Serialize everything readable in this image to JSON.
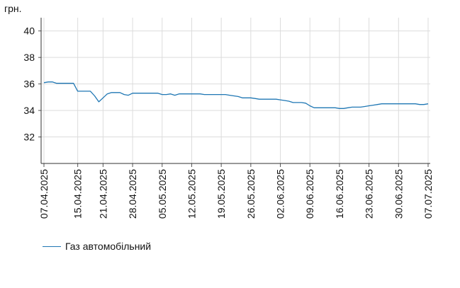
{
  "chart_data": {
    "type": "line",
    "ylabel": "грн.",
    "ylim": [
      30,
      41
    ],
    "yticks": [
      32,
      34,
      36,
      38,
      40
    ],
    "grid": true,
    "legend_position": "bottom-left",
    "xlim": [
      "2025-04-07",
      "2025-07-07"
    ],
    "xtick_labels": [
      "07.04.2025",
      "15.04.2025",
      "21.04.2025",
      "28.04.2025",
      "05.05.2025",
      "12.05.2025",
      "19.05.2025",
      "26.05.2025",
      "02.06.2025",
      "09.06.2025",
      "16.06.2025",
      "23.06.2025",
      "30.06.2025",
      "07.07.2025"
    ],
    "xtick_dates": [
      "2025-04-07",
      "2025-04-15",
      "2025-04-21",
      "2025-04-28",
      "2025-05-05",
      "2025-05-12",
      "2025-05-19",
      "2025-05-26",
      "2025-06-02",
      "2025-06-09",
      "2025-06-16",
      "2025-06-23",
      "2025-06-30",
      "2025-07-07"
    ],
    "series": [
      {
        "name": "Газ автомобільний",
        "color": "#1f77b4",
        "points": [
          [
            "2025-04-07",
            36.1
          ],
          [
            "2025-04-08",
            36.15
          ],
          [
            "2025-04-09",
            36.15
          ],
          [
            "2025-04-10",
            36.05
          ],
          [
            "2025-04-11",
            36.05
          ],
          [
            "2025-04-12",
            36.05
          ],
          [
            "2025-04-13",
            36.05
          ],
          [
            "2025-04-14",
            36.05
          ],
          [
            "2025-04-15",
            35.45
          ],
          [
            "2025-04-16",
            35.45
          ],
          [
            "2025-04-17",
            35.45
          ],
          [
            "2025-04-18",
            35.45
          ],
          [
            "2025-04-19",
            35.1
          ],
          [
            "2025-04-20",
            34.65
          ],
          [
            "2025-04-21",
            34.95
          ],
          [
            "2025-04-22",
            35.25
          ],
          [
            "2025-04-23",
            35.35
          ],
          [
            "2025-04-24",
            35.35
          ],
          [
            "2025-04-25",
            35.35
          ],
          [
            "2025-04-26",
            35.2
          ],
          [
            "2025-04-27",
            35.15
          ],
          [
            "2025-04-28",
            35.3
          ],
          [
            "2025-04-29",
            35.3
          ],
          [
            "2025-04-30",
            35.3
          ],
          [
            "2025-05-01",
            35.3
          ],
          [
            "2025-05-02",
            35.3
          ],
          [
            "2025-05-03",
            35.3
          ],
          [
            "2025-05-04",
            35.3
          ],
          [
            "2025-05-05",
            35.2
          ],
          [
            "2025-05-06",
            35.2
          ],
          [
            "2025-05-07",
            35.25
          ],
          [
            "2025-05-08",
            35.15
          ],
          [
            "2025-05-09",
            35.25
          ],
          [
            "2025-05-10",
            35.25
          ],
          [
            "2025-05-11",
            35.25
          ],
          [
            "2025-05-12",
            35.25
          ],
          [
            "2025-05-13",
            35.25
          ],
          [
            "2025-05-14",
            35.25
          ],
          [
            "2025-05-15",
            35.2
          ],
          [
            "2025-05-16",
            35.2
          ],
          [
            "2025-05-17",
            35.2
          ],
          [
            "2025-05-18",
            35.2
          ],
          [
            "2025-05-19",
            35.2
          ],
          [
            "2025-05-20",
            35.2
          ],
          [
            "2025-05-21",
            35.15
          ],
          [
            "2025-05-22",
            35.1
          ],
          [
            "2025-05-23",
            35.05
          ],
          [
            "2025-05-24",
            34.95
          ],
          [
            "2025-05-25",
            34.95
          ],
          [
            "2025-05-26",
            34.95
          ],
          [
            "2025-05-27",
            34.9
          ],
          [
            "2025-05-28",
            34.85
          ],
          [
            "2025-05-29",
            34.85
          ],
          [
            "2025-05-30",
            34.85
          ],
          [
            "2025-05-31",
            34.85
          ],
          [
            "2025-06-01",
            34.85
          ],
          [
            "2025-06-02",
            34.8
          ],
          [
            "2025-06-03",
            34.75
          ],
          [
            "2025-06-04",
            34.7
          ],
          [
            "2025-06-05",
            34.6
          ],
          [
            "2025-06-06",
            34.6
          ],
          [
            "2025-06-07",
            34.6
          ],
          [
            "2025-06-08",
            34.55
          ],
          [
            "2025-06-09",
            34.35
          ],
          [
            "2025-06-10",
            34.2
          ],
          [
            "2025-06-11",
            34.2
          ],
          [
            "2025-06-12",
            34.2
          ],
          [
            "2025-06-13",
            34.2
          ],
          [
            "2025-06-14",
            34.2
          ],
          [
            "2025-06-15",
            34.2
          ],
          [
            "2025-06-16",
            34.15
          ],
          [
            "2025-06-17",
            34.15
          ],
          [
            "2025-06-18",
            34.2
          ],
          [
            "2025-06-19",
            34.25
          ],
          [
            "2025-06-20",
            34.25
          ],
          [
            "2025-06-21",
            34.25
          ],
          [
            "2025-06-22",
            34.3
          ],
          [
            "2025-06-23",
            34.35
          ],
          [
            "2025-06-24",
            34.4
          ],
          [
            "2025-06-25",
            34.45
          ],
          [
            "2025-06-26",
            34.5
          ],
          [
            "2025-06-27",
            34.5
          ],
          [
            "2025-06-28",
            34.5
          ],
          [
            "2025-06-29",
            34.5
          ],
          [
            "2025-06-30",
            34.5
          ],
          [
            "2025-07-01",
            34.5
          ],
          [
            "2025-07-02",
            34.5
          ],
          [
            "2025-07-03",
            34.5
          ],
          [
            "2025-07-04",
            34.5
          ],
          [
            "2025-07-05",
            34.45
          ],
          [
            "2025-07-06",
            34.45
          ],
          [
            "2025-07-07",
            34.5
          ]
        ]
      }
    ]
  }
}
